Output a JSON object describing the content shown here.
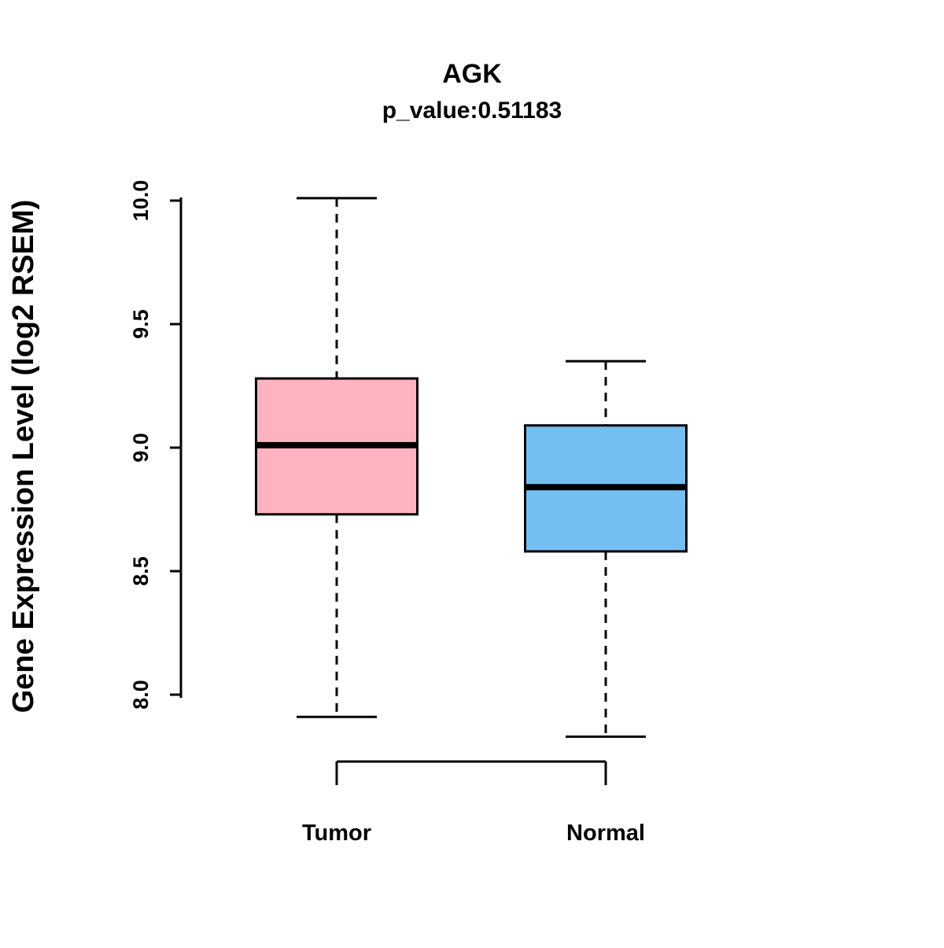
{
  "title": "AGK",
  "subtitle": "p_value:0.51183",
  "chart_data": {
    "type": "boxplot",
    "title": "AGK",
    "subtitle": "p_value:0.51183",
    "ylabel": "Gene Expression Level (log2 RSEM)",
    "xlabel": "",
    "categories": [
      "Tumor",
      "Normal"
    ],
    "series": [
      {
        "name": "Tumor",
        "color": "#FFB3C1",
        "whisker_low": 7.91,
        "q1": 8.73,
        "median": 9.01,
        "q3": 9.28,
        "whisker_high": 10.01
      },
      {
        "name": "Normal",
        "color": "#73BFF2",
        "whisker_low": 7.83,
        "q1": 8.58,
        "median": 8.84,
        "q3": 9.09,
        "whisker_high": 9.35
      }
    ],
    "yticks": [
      {
        "value": 8.0,
        "label": "8.0"
      },
      {
        "value": 8.5,
        "label": "8.5"
      },
      {
        "value": 9.0,
        "label": "9.0"
      },
      {
        "value": 9.5,
        "label": "9.5"
      },
      {
        "value": 10.0,
        "label": "10.0"
      }
    ],
    "ylim": [
      7.6,
      10.1
    ],
    "grid": false,
    "legend": "none",
    "box_border_color": "#000000",
    "median_color": "#000000"
  }
}
